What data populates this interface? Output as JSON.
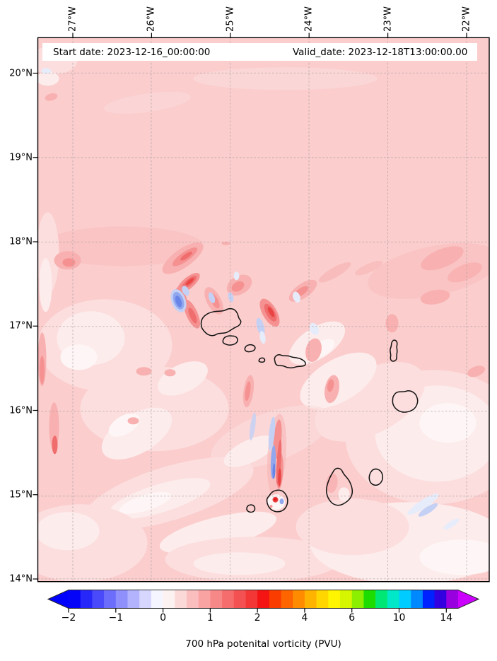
{
  "figure": {
    "start_date_label": "Start date: 2023-12-16_00:00:00",
    "valid_date_label": "Valid_date: 2023-12-18T13:00:00.00",
    "caption": "700 hPa potenital vorticity (PVU)"
  },
  "axes": {
    "lon_ticks": [
      "27°W",
      "26°W",
      "25°W",
      "24°W",
      "23°W",
      "22°W"
    ],
    "lat_ticks": [
      "20°N",
      "19°N",
      "18°N",
      "17°N",
      "16°N",
      "15°N",
      "14°N"
    ]
  },
  "colorbar": {
    "tick_labels": [
      "−2",
      "−1",
      "0",
      "1",
      "2",
      "4",
      "6",
      "10",
      "14"
    ],
    "under_arrow_color": "#0000ff",
    "over_arrow_color": "#cc00ff",
    "segment_colors": [
      "#0404f9",
      "#2727fa",
      "#4a4afb",
      "#6d6dfb",
      "#9090fc",
      "#b3b3fd",
      "#d6d6fe",
      "#f5f5ff",
      "#fdf2f2",
      "#fcd9d9",
      "#fabebe",
      "#f9a3a3",
      "#f78888",
      "#f66d6d",
      "#f45252",
      "#f33737",
      "#f51414",
      "#fa3c00",
      "#fe6400",
      "#ff8c00",
      "#ffb300",
      "#ffd600",
      "#fff500",
      "#d6f500",
      "#8cee00",
      "#1ddd00",
      "#00e775",
      "#00e8c8",
      "#00ccff",
      "#0088ff",
      "#0022ff",
      "#3300e0",
      "#9900e0"
    ]
  },
  "chart_data": {
    "type": "heatmap",
    "subtype": "filled-contour geographic map with coastline outlines",
    "title": "700 hPa potenital vorticity (PVU)",
    "annotations": [
      "Start date: 2023-12-16_00:00:00",
      "Valid_date: 2023-12-18T13:00:00.00"
    ],
    "x_axis": {
      "position": "top",
      "ticks": [
        "27°W",
        "26°W",
        "25°W",
        "24°W",
        "23°W",
        "22°W"
      ],
      "approx_range": [
        "27.4°W",
        "21.7°W"
      ]
    },
    "y_axis": {
      "position": "left",
      "ticks": [
        "20°N",
        "19°N",
        "18°N",
        "17°N",
        "16°N",
        "15°N",
        "14°N"
      ],
      "approx_range": [
        "14.0°N",
        "20.4°N"
      ]
    },
    "grid": "dashed gray graticule at each labeled degree",
    "colorbar": {
      "orientation": "horizontal",
      "extend": "both",
      "units": "PVU",
      "tick_values": [
        -2,
        -1,
        0,
        1,
        2,
        4,
        6,
        10,
        14
      ],
      "level_boundaries": [
        -2,
        -1.75,
        -1.5,
        -1.25,
        -1,
        -0.75,
        -0.5,
        -0.25,
        0,
        0.25,
        0.5,
        0.75,
        1,
        1.25,
        1.5,
        1.75,
        2,
        2.5,
        3,
        3.5,
        4,
        4.5,
        5,
        5.5,
        6,
        7,
        8,
        9,
        10,
        11,
        12,
        13,
        14,
        15
      ]
    },
    "field_summary": {
      "background_value": "mostly 0.25 to 0.75 PVU (pale pink to pink) with lighter 0-0.25 PVU patches in the west and south",
      "features": [
        "cluster of SW-NE oriented positive filaments (1-2 PVU, red) near 25-26°W between 17.2°N and 17.9°N",
        "adjacent negative streaks (-0.5 to -1.5 PVU, blue) embedded in the filament cluster near 25.7°W, 17.4°N",
        "narrow red/blue vortex trail running south from ~24.7°W, 16.3°N down to Fogo island at ~24.4°W, 14.9°N",
        "small intense positive core (>2 PVU) surrounded by a pale ring on Fogo island near 24.4°W, 14.9°N",
        "weak pale-blue negative streaks near 22.6°W, 14.8°N",
        "coastlines of the Cape Verde archipelago (10 islands) outlined in black"
      ]
    }
  }
}
